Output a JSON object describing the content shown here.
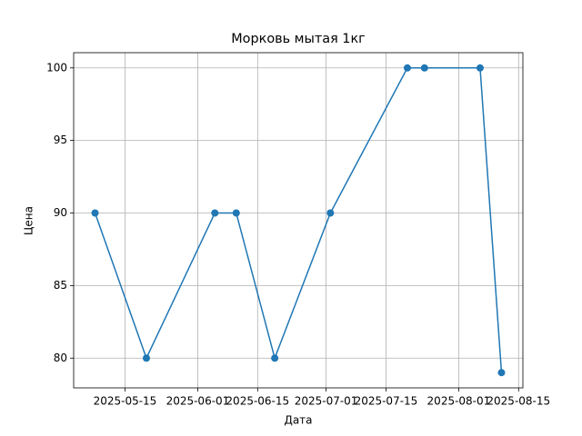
{
  "chart_data": {
    "type": "line",
    "title": "Морковь мытая 1кг",
    "x_label": "Дата",
    "y_label": "Цена",
    "x": [
      "2025-05-08",
      "2025-05-20",
      "2025-06-05",
      "2025-06-10",
      "2025-06-19",
      "2025-07-02",
      "2025-07-20",
      "2025-07-24",
      "2025-08-06",
      "2025-08-11"
    ],
    "values": [
      90,
      80,
      90,
      90,
      80,
      90,
      100,
      100,
      100,
      79
    ],
    "color": "#1f77b4",
    "xlim": [
      "2025-05-03",
      "2025-08-16"
    ],
    "xticks": [
      "2025-05-15",
      "2025-06-01",
      "2025-06-15",
      "2025-07-01",
      "2025-07-15",
      "2025-08-01",
      "2025-08-15"
    ],
    "ylim": [
      77.95,
      101.05
    ],
    "yticks": [
      80,
      85,
      90,
      95,
      100
    ],
    "grid": true
  }
}
